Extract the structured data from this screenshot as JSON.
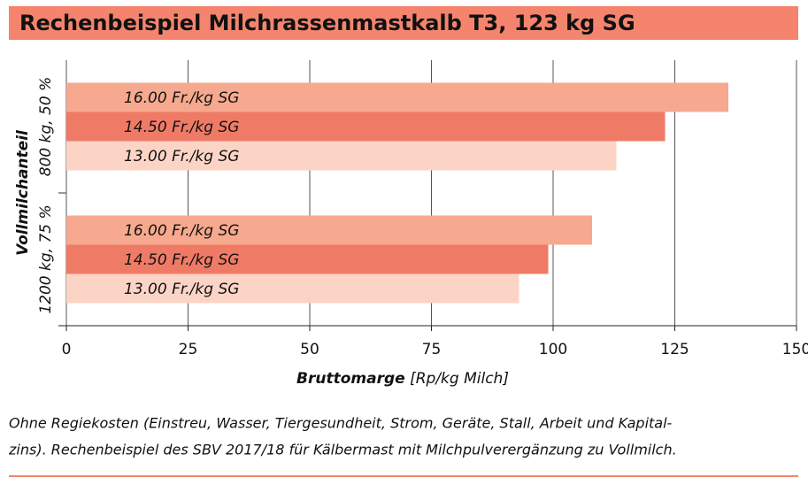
{
  "chart_data": {
    "type": "hbar",
    "title": "Rechenbeispiel Milchrassenmastkalb T3, 123 kg SG",
    "categories": [
      "800 kg, 50 %",
      "1200 kg, 75 %"
    ],
    "series": [
      {
        "name": "16.00 Fr./kg SG",
        "color": "#f6a98e",
        "values": [
          136,
          108
        ]
      },
      {
        "name": "14.50 Fr./kg SG",
        "color": "#ef7b66",
        "values": [
          123,
          99
        ]
      },
      {
        "name": "13.00 Fr./kg SG",
        "color": "#fbd4c6",
        "values": [
          113,
          93
        ]
      }
    ],
    "xlim": [
      0,
      150
    ],
    "xticks": [
      0,
      25,
      50,
      75,
      100,
      125,
      150
    ],
    "grid": true,
    "x_label": "Bruttomarge",
    "x_label_unit": "[Rp/kg Milch]",
    "y_label": "Vollmilchanteil",
    "footnote": [
      "Ohne Regiekosten (Einstreu, Wasser, Tiergesundheit, Strom, Geräte, Stall, Arbeit und Kapital-",
      "zins). Rechenbeispiel des SBV 2017/18 für Kälbermast mit Milchpulverergänzung zu Vollmilch."
    ]
  }
}
